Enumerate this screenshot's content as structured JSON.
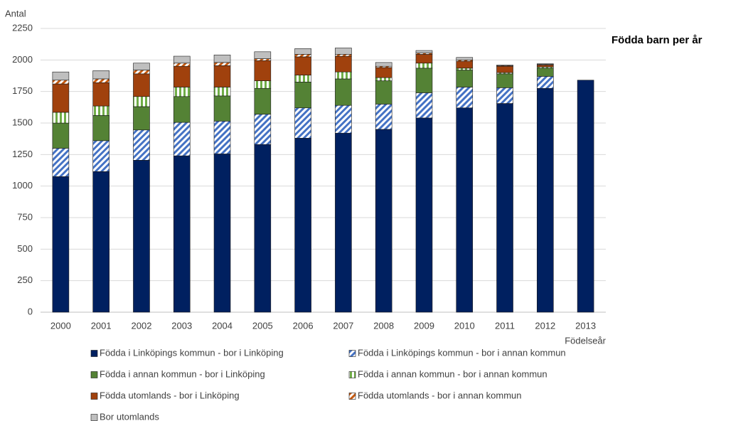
{
  "chart_data": {
    "type": "stacked_bar",
    "title": "Födda barn per år",
    "y_label": "Antal",
    "x_label": "Födelseår",
    "categories": [
      "2000",
      "2001",
      "2002",
      "2003",
      "2004",
      "2005",
      "2006",
      "2007",
      "2008",
      "2009",
      "2010",
      "2011",
      "2012",
      "2013"
    ],
    "ylim": [
      0,
      2250
    ],
    "yticks": [
      0,
      250,
      500,
      750,
      {
        "value": 1000,
        "label": "1000"
      },
      1250,
      1500,
      1750,
      2000,
      2250
    ],
    "grid": true,
    "legend": "bottom",
    "series": [
      {
        "name": "Födda i Linköpings kommun - bor i Linköping",
        "color": "#002060",
        "hatch": "none",
        "values": [
          1075,
          1115,
          1205,
          1240,
          1255,
          1330,
          1380,
          1420,
          1450,
          1540,
          1620,
          1655,
          1775,
          1840
        ]
      },
      {
        "name": "Födda i Linköpings kommun - bor i annan kommun",
        "color": "#4472c4",
        "hatch": "diagonal",
        "values": [
          225,
          245,
          240,
          265,
          260,
          240,
          240,
          220,
          200,
          200,
          165,
          125,
          95,
          0
        ]
      },
      {
        "name": "Födda i annan kommun - bor i Linköping",
        "color": "#548235",
        "hatch": "none",
        "values": [
          200,
          200,
          185,
          205,
          200,
          205,
          205,
          210,
          185,
          195,
          135,
          110,
          65,
          0
        ]
      },
      {
        "name": "Födda i annan kommun - bor i annan kommun",
        "color": "#70ad47",
        "hatch": "vertical",
        "values": [
          85,
          75,
          80,
          75,
          70,
          60,
          55,
          55,
          25,
          40,
          15,
          10,
          10,
          0
        ]
      },
      {
        "name": "Födda utomlands - bor i Linköping",
        "color": "#a0410d",
        "hatch": "none",
        "values": [
          225,
          185,
          180,
          165,
          170,
          160,
          145,
          125,
          80,
          70,
          55,
          50,
          15,
          0
        ]
      },
      {
        "name": "Födda utomlands - bor i annan kommun",
        "color": "#c55a11",
        "hatch": "diagonal",
        "values": [
          30,
          30,
          30,
          25,
          25,
          15,
          20,
          15,
          10,
          10,
          10,
          5,
          5,
          0
        ]
      },
      {
        "name": "Bor utomlands",
        "color": "#bfbfbf",
        "hatch": "none",
        "values": [
          65,
          65,
          55,
          55,
          60,
          55,
          45,
          50,
          30,
          20,
          20,
          5,
          5,
          0
        ]
      }
    ]
  }
}
